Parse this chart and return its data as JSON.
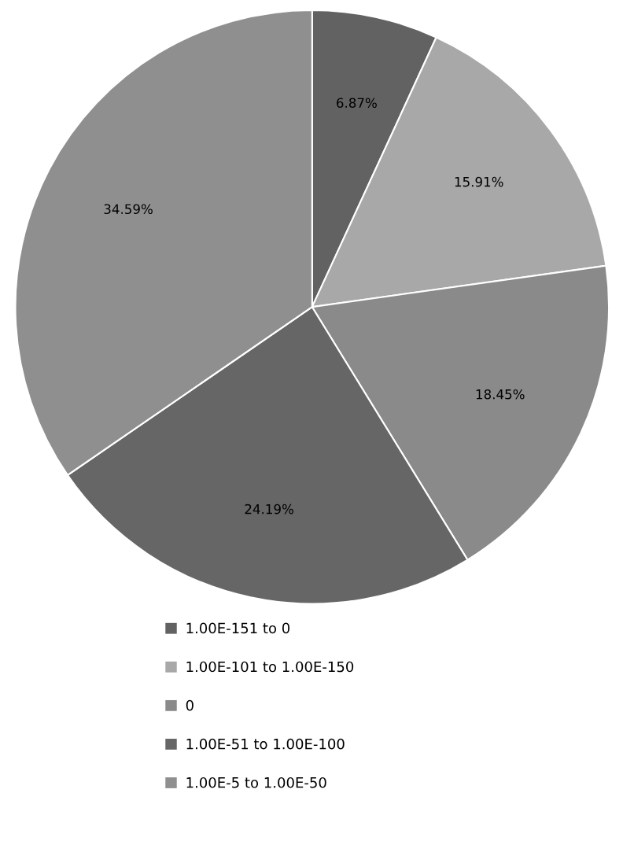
{
  "chart_data": {
    "type": "pie",
    "categories": [
      "1.00E-151 to 0",
      "1.00E-101 to 1.00E-150",
      "0",
      "1.00E-51 to 1.00E-100",
      "1.00E-5 to 1.00E-50"
    ],
    "values": [
      6.87,
      15.91,
      18.45,
      24.19,
      34.59
    ],
    "value_labels": [
      "6.87%",
      "15.91%",
      "18.45%",
      "24.19%",
      "34.59%"
    ],
    "colors": [
      "#626262",
      "#a8a8a8",
      "#8a8a8a",
      "#666666",
      "#8f8f8f"
    ],
    "legend": "bottom"
  }
}
